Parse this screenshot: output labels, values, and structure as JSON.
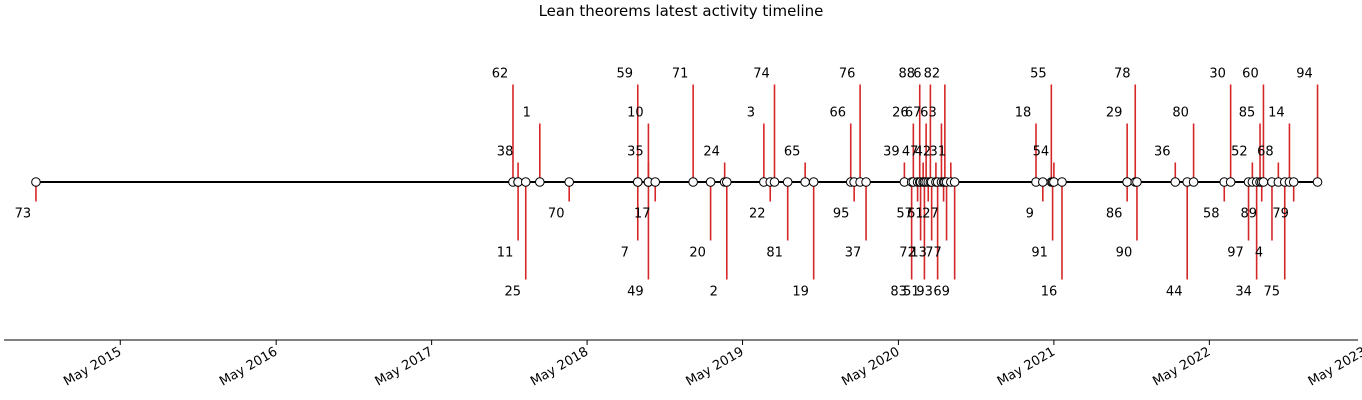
{
  "chart_data": {
    "type": "timeline",
    "title": "Lean theorems latest activity timeline",
    "xlim": [
      "2014-08-01",
      "2023-04-15"
    ],
    "x_ticks": [
      {
        "date": "2015-05-01",
        "label": "May 2015"
      },
      {
        "date": "2016-05-01",
        "label": "May 2016"
      },
      {
        "date": "2017-05-01",
        "label": "May 2017"
      },
      {
        "date": "2018-05-01",
        "label": "May 2018"
      },
      {
        "date": "2019-05-01",
        "label": "May 2019"
      },
      {
        "date": "2020-05-01",
        "label": "May 2020"
      },
      {
        "date": "2021-05-01",
        "label": "May 2021"
      },
      {
        "date": "2022-05-01",
        "label": "May 2022"
      },
      {
        "date": "2023-05-01",
        "label": "May 2023"
      }
    ],
    "stem_levels": [
      -1,
      5,
      -3,
      1,
      -5,
      3
    ],
    "colors": {
      "stem": "#d62728",
      "baseline": "#000000",
      "marker_face": "#ffffff",
      "marker_edge": "#000000"
    },
    "events": [
      {
        "label": "73",
        "date": "2014-10-15"
      },
      {
        "label": "62",
        "date": "2017-11-08"
      },
      {
        "label": "11",
        "date": "2017-11-20"
      },
      {
        "label": "38",
        "date": "2017-11-20"
      },
      {
        "label": "25",
        "date": "2017-12-08"
      },
      {
        "label": "1",
        "date": "2018-01-10"
      },
      {
        "label": "70",
        "date": "2018-03-20"
      },
      {
        "label": "59",
        "date": "2018-08-28"
      },
      {
        "label": "7",
        "date": "2018-08-28"
      },
      {
        "label": "35",
        "date": "2018-09-22"
      },
      {
        "label": "49",
        "date": "2018-09-22"
      },
      {
        "label": "10",
        "date": "2018-09-22"
      },
      {
        "label": "17",
        "date": "2018-10-08"
      },
      {
        "label": "71",
        "date": "2019-01-05"
      },
      {
        "label": "20",
        "date": "2019-02-15"
      },
      {
        "label": "24",
        "date": "2019-03-20"
      },
      {
        "label": "2",
        "date": "2019-03-25"
      },
      {
        "label": "3",
        "date": "2019-06-20"
      },
      {
        "label": "22",
        "date": "2019-07-05"
      },
      {
        "label": "74",
        "date": "2019-07-15"
      },
      {
        "label": "81",
        "date": "2019-08-15"
      },
      {
        "label": "65",
        "date": "2019-09-25"
      },
      {
        "label": "19",
        "date": "2019-10-15"
      },
      {
        "label": "66",
        "date": "2020-01-10"
      },
      {
        "label": "95",
        "date": "2020-01-18"
      },
      {
        "label": "76",
        "date": "2020-02-01"
      },
      {
        "label": "37",
        "date": "2020-02-15"
      },
      {
        "label": "39",
        "date": "2020-05-15"
      },
      {
        "label": "83",
        "date": "2020-06-01"
      },
      {
        "label": "26",
        "date": "2020-06-05"
      },
      {
        "label": "57",
        "date": "2020-06-15"
      },
      {
        "label": "88",
        "date": "2020-06-20"
      },
      {
        "label": "72",
        "date": "2020-06-22"
      },
      {
        "label": "47",
        "date": "2020-06-28"
      },
      {
        "label": "51",
        "date": "2020-07-01"
      },
      {
        "label": "67",
        "date": "2020-07-05"
      },
      {
        "label": "61",
        "date": "2020-07-10"
      },
      {
        "label": "6",
        "date": "2020-07-15"
      },
      {
        "label": "13",
        "date": "2020-07-18"
      },
      {
        "label": "42",
        "date": "2020-07-28"
      },
      {
        "label": "93",
        "date": "2020-08-01"
      },
      {
        "label": "63",
        "date": "2020-08-10"
      },
      {
        "label": "27",
        "date": "2020-08-15"
      },
      {
        "label": "82",
        "date": "2020-08-18"
      },
      {
        "label": "77",
        "date": "2020-08-22"
      },
      {
        "label": "31",
        "date": "2020-09-01"
      },
      {
        "label": "69",
        "date": "2020-09-10"
      },
      {
        "label": "18",
        "date": "2021-03-20"
      },
      {
        "label": "9",
        "date": "2021-04-05"
      },
      {
        "label": "55",
        "date": "2021-04-25"
      },
      {
        "label": "91",
        "date": "2021-04-28"
      },
      {
        "label": "54",
        "date": "2021-05-01"
      },
      {
        "label": "16",
        "date": "2021-05-20"
      },
      {
        "label": "29",
        "date": "2021-10-20"
      },
      {
        "label": "86",
        "date": "2021-10-20"
      },
      {
        "label": "78",
        "date": "2021-11-08"
      },
      {
        "label": "90",
        "date": "2021-11-12"
      },
      {
        "label": "36",
        "date": "2022-02-10"
      },
      {
        "label": "44",
        "date": "2022-03-10"
      },
      {
        "label": "80",
        "date": "2022-03-25"
      },
      {
        "label": "58",
        "date": "2022-06-05"
      },
      {
        "label": "30",
        "date": "2022-06-20"
      },
      {
        "label": "97",
        "date": "2022-08-01"
      },
      {
        "label": "52",
        "date": "2022-08-10"
      },
      {
        "label": "34",
        "date": "2022-08-20"
      },
      {
        "label": "85",
        "date": "2022-08-28"
      },
      {
        "label": "89",
        "date": "2022-09-01"
      },
      {
        "label": "60",
        "date": "2022-09-05"
      },
      {
        "label": "4",
        "date": "2022-09-25"
      },
      {
        "label": "68",
        "date": "2022-10-10"
      },
      {
        "label": "75",
        "date": "2022-10-25"
      },
      {
        "label": "14",
        "date": "2022-11-05"
      },
      {
        "label": "79",
        "date": "2022-11-15"
      },
      {
        "label": "94",
        "date": "2023-01-10"
      }
    ]
  }
}
